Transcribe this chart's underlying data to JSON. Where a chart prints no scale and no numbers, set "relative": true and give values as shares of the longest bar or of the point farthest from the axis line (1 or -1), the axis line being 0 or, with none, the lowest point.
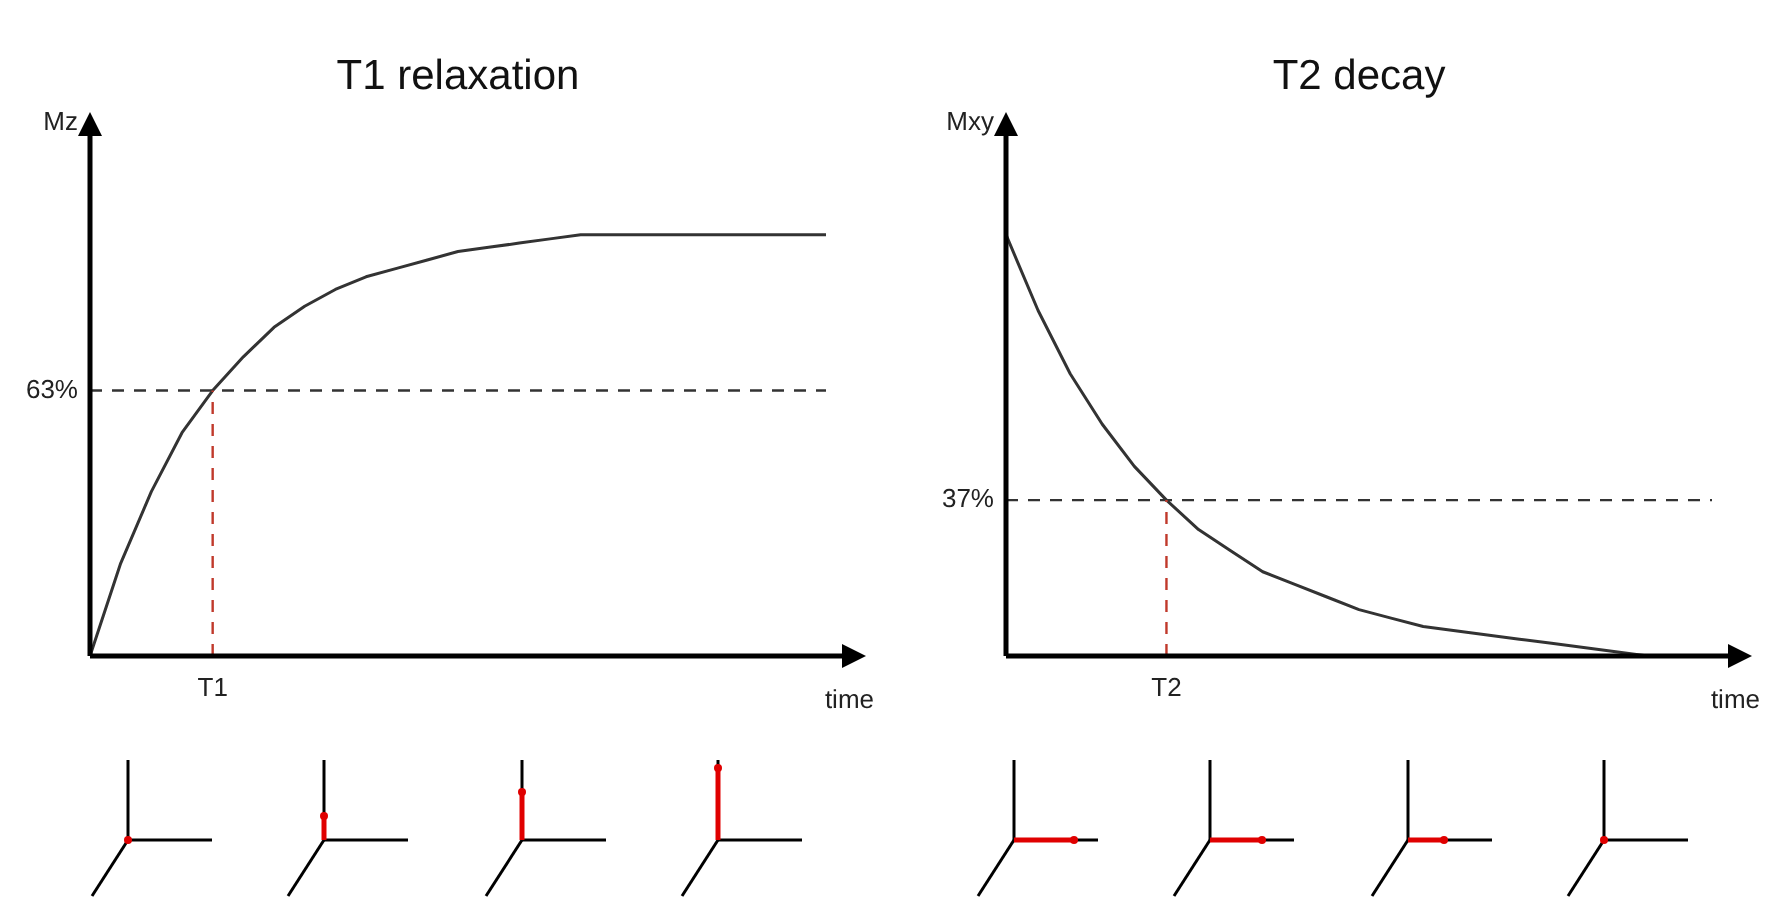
{
  "chart_data": [
    {
      "type": "line",
      "title": "T1 relaxation",
      "xlabel": "time",
      "ylabel": "Mz",
      "relative": true,
      "legend": false,
      "marker": "none",
      "categories": [
        null,
        null,
        null,
        null,
        null,
        null,
        null,
        null,
        null,
        null,
        null,
        null,
        null,
        null,
        null,
        null,
        null,
        null,
        null,
        null,
        null,
        null,
        null,
        null,
        null
      ],
      "series": [
        {
          "color": "#333333",
          "values": [
            0,
            0.22,
            0.39,
            0.53,
            0.63,
            0.71,
            0.78,
            0.83,
            0.87,
            0.9,
            0.92,
            0.94,
            0.96,
            0.97,
            0.98,
            0.99,
            1,
            1,
            1,
            1,
            1,
            1,
            1,
            1,
            1
          ]
        }
      ],
      "ref_lines": [
        {
          "axis": "y",
          "value": 0.63,
          "label": "63%",
          "color": "#333333",
          "line_style": "dashed"
        }
      ],
      "annotations": [
        {
          "text": "T1",
          "y": 0.63
        }
      ]
    },
    {
      "type": "line",
      "title": "T2 decay",
      "xlabel": "time",
      "ylabel": "Mxy",
      "relative": true,
      "legend": false,
      "marker": "none",
      "categories": [
        null,
        null,
        null,
        null,
        null,
        null,
        null,
        null,
        null,
        null,
        null,
        null,
        null,
        null,
        null,
        null,
        null,
        null,
        null,
        null,
        null,
        null,
        null
      ],
      "series": [
        {
          "color": "#333333",
          "values": [
            1,
            0.82,
            0.67,
            0.55,
            0.45,
            0.37,
            0.3,
            0.25,
            0.2,
            0.17,
            0.14,
            0.11,
            0.09,
            0.07,
            0.06,
            0.05,
            0.04,
            0.03,
            0.02,
            0.01,
            0,
            0,
            0
          ]
        }
      ],
      "ref_lines": [
        {
          "axis": "y",
          "value": 0.37,
          "label": "37%",
          "color": "#333333",
          "line_style": "dashed"
        }
      ],
      "annotations": [
        {
          "text": "T2",
          "y": 0.37
        }
      ]
    }
  ]
}
